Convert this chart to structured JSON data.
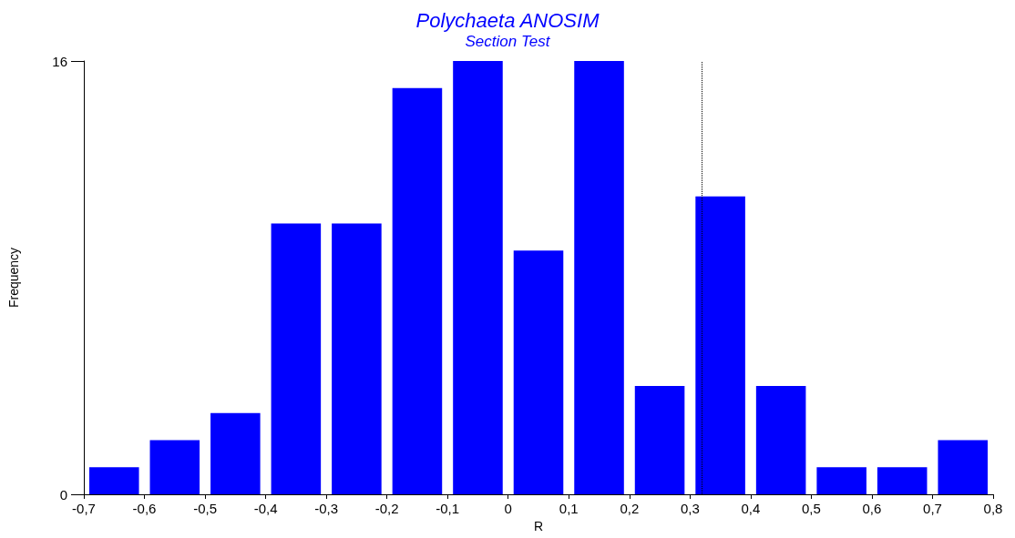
{
  "chart_data": {
    "type": "histogram",
    "title": "Polychaeta ANOSIM",
    "subtitle": "Section Test",
    "xlabel": "R",
    "ylabel": "Frequency",
    "bins": [
      -0.7,
      -0.6,
      -0.5,
      -0.4,
      -0.3,
      -0.2,
      -0.1,
      0,
      0.1,
      0.2,
      0.3,
      0.4,
      0.5,
      0.6,
      0.7,
      0.8
    ],
    "values": [
      1,
      2,
      3,
      10,
      10,
      15,
      16,
      9,
      16,
      4,
      11,
      4,
      1,
      1,
      2
    ],
    "color": "#0000ff",
    "xlim": [
      -0.7,
      0.8
    ],
    "xticks": [
      {
        "value": -0.7,
        "label": "-0,7"
      },
      {
        "value": -0.6,
        "label": "-0,6"
      },
      {
        "value": -0.5,
        "label": "-0,5"
      },
      {
        "value": -0.4,
        "label": "-0,4"
      },
      {
        "value": -0.3,
        "label": "-0,3"
      },
      {
        "value": -0.2,
        "label": "-0,2"
      },
      {
        "value": -0.1,
        "label": "-0,1"
      },
      0,
      {
        "value": 0.1,
        "label": "0,1"
      },
      {
        "value": 0.2,
        "label": "0,2"
      },
      {
        "value": 0.3,
        "label": "0,3"
      },
      {
        "value": 0.4,
        "label": "0,4"
      },
      {
        "value": 0.5,
        "label": "0,5"
      },
      {
        "value": 0.6,
        "label": "0,6"
      },
      {
        "value": 0.7,
        "label": "0,7"
      },
      {
        "value": 0.8,
        "label": "0,8"
      }
    ],
    "ylim": [
      0,
      16
    ],
    "yticks": [
      0,
      16
    ],
    "ref_lines": [
      {
        "axis": "x",
        "value": 0.324,
        "label": null,
        "color": "#000000",
        "line_style": "dotted"
      }
    ],
    "grid": false
  }
}
